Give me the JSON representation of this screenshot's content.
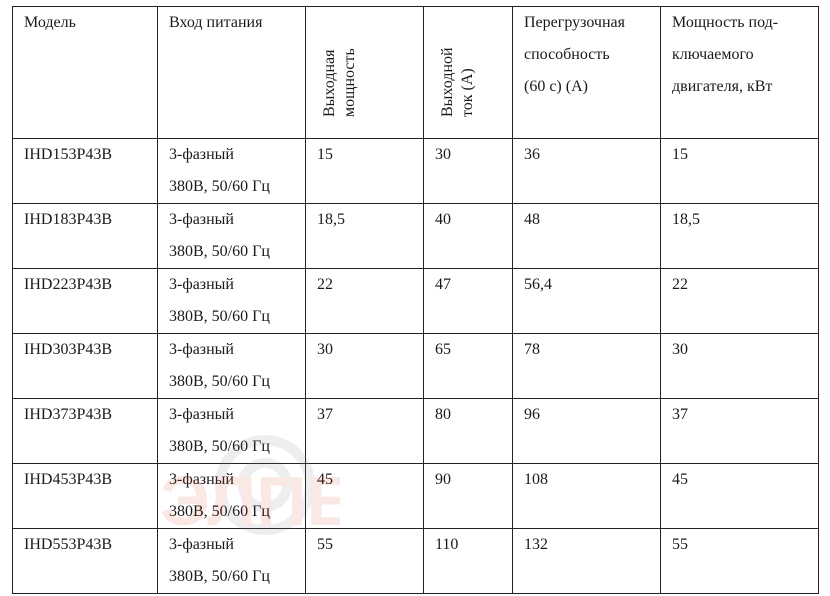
{
  "table": {
    "headers": {
      "model": "Модель",
      "input": "Вход питания",
      "output_power": "Выходная\nмощность",
      "output_current": "Выходной\nток (А)",
      "overload": "Перегрузочная\nспособность\n(60 с) (А)",
      "motor_power": "Мощность под-\nключаемого\nдвигателя, кВт"
    },
    "rows": [
      {
        "model": "IHD153P43B",
        "input": "3-фазный\n380В, 50/60 Гц",
        "power": "15",
        "current": "30",
        "overload": "36",
        "motor": "15"
      },
      {
        "model": "IHD183P43B",
        "input": "3-фазный\n380В, 50/60 Гц",
        "power": "18,5",
        "current": "40",
        "overload": "48",
        "motor": "18,5"
      },
      {
        "model": "IHD223P43B",
        "input": "3-фазный\n380В, 50/60 Гц",
        "power": "22",
        "current": "47",
        "overload": "56,4",
        "motor": "22"
      },
      {
        "model": "IHD303P43B",
        "input": "3-фазный\n380В, 50/60 Гц",
        "power": "30",
        "current": "65",
        "overload": "78",
        "motor": "30"
      },
      {
        "model": "IHD373P43B",
        "input": "3-фазный\n380В, 50/60 Гц",
        "power": "37",
        "current": "80",
        "overload": "96",
        "motor": "37"
      },
      {
        "model": "IHD453P43B",
        "input": "3-фазный\n380В, 50/60 Гц",
        "power": "45",
        "current": "90",
        "overload": "108",
        "motor": "45"
      },
      {
        "model": "IHD553P43B",
        "input": "3-фазный\n380В, 50/60 Гц",
        "power": "55",
        "current": "110",
        "overload": "132",
        "motor": "55"
      }
    ]
  },
  "watermark": {
    "text": "ЭЛПЕ",
    "colors": [
      "#d04a2a",
      "#7a7a7a"
    ]
  }
}
